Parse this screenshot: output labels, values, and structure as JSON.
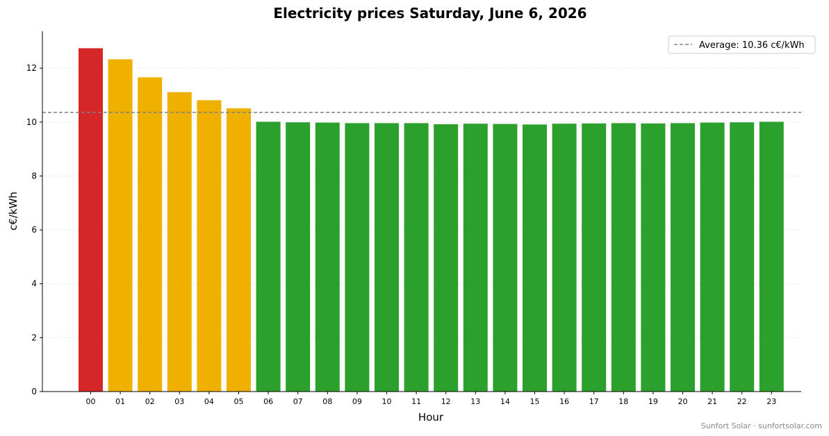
{
  "chart_data": {
    "type": "bar",
    "title": "Electricity prices Saturday, June 6, 2026",
    "xlabel": "Hour",
    "ylabel": "c€/kWh",
    "categories": [
      "00",
      "01",
      "02",
      "03",
      "04",
      "05",
      "06",
      "07",
      "08",
      "09",
      "10",
      "11",
      "12",
      "13",
      "14",
      "15",
      "16",
      "17",
      "18",
      "19",
      "20",
      "21",
      "22",
      "23"
    ],
    "values": [
      12.74,
      12.33,
      11.66,
      11.11,
      10.81,
      10.51,
      10.01,
      9.99,
      9.98,
      9.96,
      9.96,
      9.96,
      9.92,
      9.94,
      9.93,
      9.91,
      9.94,
      9.95,
      9.96,
      9.95,
      9.96,
      9.98,
      9.99,
      10.01
    ],
    "bar_colors": [
      "#d62728",
      "#f0b000",
      "#f0b000",
      "#f0b000",
      "#f0b000",
      "#f0b000",
      "#2ca02c",
      "#2ca02c",
      "#2ca02c",
      "#2ca02c",
      "#2ca02c",
      "#2ca02c",
      "#2ca02c",
      "#2ca02c",
      "#2ca02c",
      "#2ca02c",
      "#2ca02c",
      "#2ca02c",
      "#2ca02c",
      "#2ca02c",
      "#2ca02c",
      "#2ca02c",
      "#2ca02c",
      "#2ca02c"
    ],
    "ylim": [
      0,
      13.37
    ],
    "yticks": [
      0,
      2,
      4,
      6,
      8,
      10,
      12
    ],
    "average": 10.36,
    "average_label": "Average: 10.36 c€/kWh",
    "grid": "y-dotted",
    "legend_position": "top-right",
    "colors": {
      "high": "#d62728",
      "medium": "#f0b000",
      "low": "#2ca02c",
      "average_line": "#808080"
    }
  },
  "footer": "Sunfort Solar · sunfortsolar.com"
}
